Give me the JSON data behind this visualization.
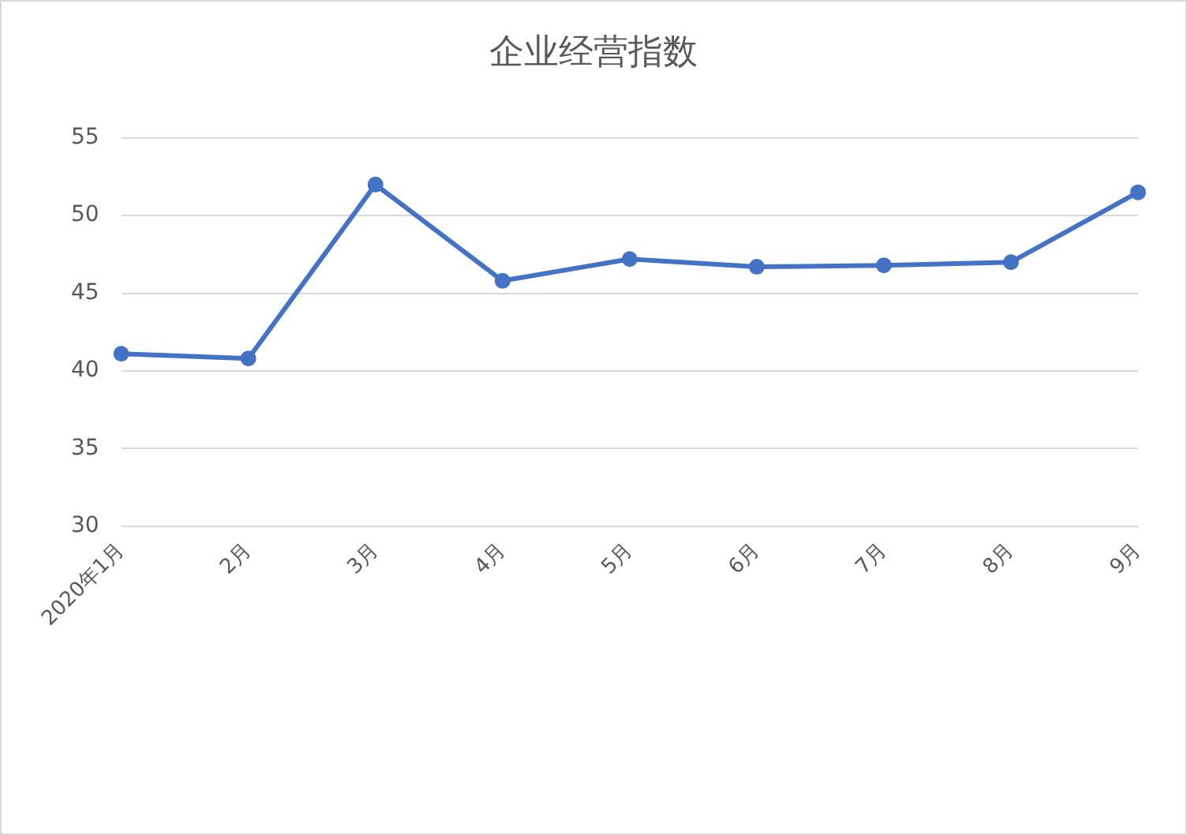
{
  "chart_data": {
    "type": "line",
    "title": "企业经营指数",
    "categories": [
      "2020年1月",
      "2月",
      "3月",
      "4月",
      "5月",
      "6月",
      "7月",
      "8月",
      "9月"
    ],
    "series": [
      {
        "color": "#4472c4",
        "values": [
          41.1,
          40.8,
          52.0,
          45.8,
          47.2,
          46.7,
          46.8,
          47.0,
          51.5
        ]
      }
    ],
    "ylim": [
      30,
      55
    ],
    "yticks": [
      30,
      35,
      40,
      45,
      50,
      55
    ],
    "grid": "y",
    "legend": false,
    "marker": "circle",
    "line_style": "solid"
  }
}
